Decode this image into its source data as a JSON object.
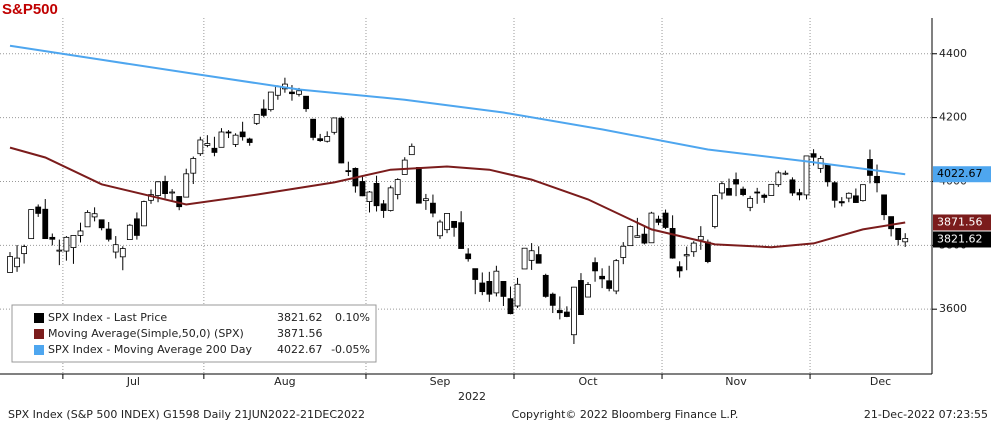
{
  "chart_data": {
    "type": "candlestick",
    "title": "S&P500",
    "xlabel": "2022",
    "xlim": [
      -1.42,
      130.8
    ],
    "ylim": [
      3397,
      4512
    ],
    "yticks": [
      3600,
      3800,
      4000,
      4200,
      4400
    ],
    "grid": true,
    "xticks": [
      7.5,
      27.5,
      50.5,
      71.5,
      92.5,
      113.5
    ],
    "month_labels": [
      {
        "value": 17.5,
        "label": "Jul"
      },
      {
        "value": 39,
        "label": "Aug"
      },
      {
        "value": 61,
        "label": "Sep"
      },
      {
        "value": 82,
        "label": "Oct"
      },
      {
        "value": 103,
        "label": "Nov"
      },
      {
        "value": 123.5,
        "label": "Dec"
      }
    ],
    "candle_name": "SPX Index - Last Price",
    "candle_change": "0.10%",
    "up_color": "#ffffff",
    "down_color": "#000000",
    "ohlc": [
      [
        3715,
        3779,
        3715,
        3765
      ],
      [
        3733,
        3801,
        3717,
        3760
      ],
      [
        3774,
        3802,
        3743,
        3796
      ],
      [
        3821,
        3913,
        3821,
        3912
      ],
      [
        3920,
        3928,
        3889,
        3900
      ],
      [
        3913,
        3945,
        3820,
        3821
      ],
      [
        3825,
        3837,
        3800,
        3819
      ],
      [
        3785,
        3818,
        3738,
        3785
      ],
      [
        3782,
        3829,
        3752,
        3825
      ],
      [
        3793,
        3832,
        3742,
        3831
      ],
      [
        3831,
        3871,
        3809,
        3845
      ],
      [
        3858,
        3910,
        3858,
        3903
      ],
      [
        3889,
        3919,
        3875,
        3899
      ],
      [
        3880,
        3880,
        3847,
        3855
      ],
      [
        3851,
        3873,
        3812,
        3819
      ],
      [
        3779,
        3829,
        3759,
        3802
      ],
      [
        3764,
        3797,
        3722,
        3790
      ],
      [
        3818,
        3867,
        3818,
        3863
      ],
      [
        3883,
        3903,
        3818,
        3831
      ],
      [
        3861,
        3940,
        3860,
        3937
      ],
      [
        3941,
        3975,
        3930,
        3959
      ],
      [
        3956,
        4001,
        3935,
        3999
      ],
      [
        4000,
        4018,
        3947,
        3962
      ],
      [
        3966,
        3976,
        3939,
        3967
      ],
      [
        3953,
        3954,
        3910,
        3921
      ],
      [
        3951,
        4040,
        3951,
        4024
      ],
      [
        4026,
        4078,
        3992,
        4072
      ],
      [
        4087,
        4140,
        4080,
        4130
      ],
      [
        4113,
        4145,
        4107,
        4119
      ],
      [
        4104,
        4140,
        4079,
        4091
      ],
      [
        4107,
        4167,
        4107,
        4155
      ],
      [
        4155,
        4161,
        4136,
        4152
      ],
      [
        4116,
        4151,
        4108,
        4145
      ],
      [
        4155,
        4187,
        4128,
        4140
      ],
      [
        4133,
        4137,
        4112,
        4122
      ],
      [
        4182,
        4211,
        4177,
        4210
      ],
      [
        4227,
        4257,
        4201,
        4207
      ],
      [
        4225,
        4280,
        4219,
        4280
      ],
      [
        4270,
        4301,
        4256,
        4297
      ],
      [
        4290,
        4325,
        4278,
        4305
      ],
      [
        4280,
        4302,
        4253,
        4275
      ],
      [
        4273,
        4293,
        4266,
        4284
      ],
      [
        4267,
        4267,
        4218,
        4228
      ],
      [
        4195,
        4195,
        4129,
        4138
      ],
      [
        4134,
        4149,
        4124,
        4128
      ],
      [
        4126,
        4157,
        4122,
        4141
      ],
      [
        4154,
        4200,
        4147,
        4199
      ],
      [
        4198,
        4204,
        4057,
        4058
      ],
      [
        4034,
        4062,
        4017,
        4031
      ],
      [
        4041,
        4044,
        3965,
        3986
      ],
      [
        4000,
        4016,
        3954,
        3955
      ],
      [
        3937,
        3970,
        3903,
        3967
      ],
      [
        3994,
        4018,
        3906,
        3924
      ],
      [
        3930,
        3942,
        3886,
        3909
      ],
      [
        3909,
        3987,
        3906,
        3980
      ],
      [
        3959,
        4010,
        3944,
        4006
      ],
      [
        4022,
        4076,
        4022,
        4067
      ],
      [
        4084,
        4119,
        4083,
        4110
      ],
      [
        4044,
        4044,
        3933,
        3932
      ],
      [
        3940,
        3961,
        3911,
        3946
      ],
      [
        3932,
        3959,
        3888,
        3901
      ],
      [
        3830,
        3880,
        3820,
        3873
      ],
      [
        3849,
        3901,
        3838,
        3900
      ],
      [
        3875,
        3876,
        3827,
        3856
      ],
      [
        3871,
        3907,
        3789,
        3790
      ],
      [
        3773,
        3791,
        3749,
        3758
      ],
      [
        3727,
        3727,
        3647,
        3693
      ],
      [
        3682,
        3715,
        3644,
        3655
      ],
      [
        3687,
        3717,
        3623,
        3647
      ],
      [
        3651,
        3736,
        3640,
        3719
      ],
      [
        3687,
        3687,
        3610,
        3640
      ],
      [
        3633,
        3671,
        3584,
        3586
      ],
      [
        3610,
        3698,
        3604,
        3678
      ],
      [
        3726,
        3791,
        3726,
        3791
      ],
      [
        3753,
        3807,
        3723,
        3783
      ],
      [
        3771,
        3797,
        3745,
        3744
      ],
      [
        3706,
        3711,
        3636,
        3640
      ],
      [
        3647,
        3652,
        3588,
        3612
      ],
      [
        3596,
        3640,
        3568,
        3589
      ],
      [
        3591,
        3609,
        3575,
        3577
      ],
      [
        3520,
        3670,
        3491,
        3669
      ],
      [
        3690,
        3713,
        3583,
        3583
      ],
      [
        3638,
        3685,
        3638,
        3677
      ],
      [
        3746,
        3762,
        3686,
        3720
      ],
      [
        3703,
        3728,
        3666,
        3695
      ],
      [
        3689,
        3736,
        3656,
        3665
      ],
      [
        3657,
        3757,
        3647,
        3752
      ],
      [
        3762,
        3810,
        3741,
        3797
      ],
      [
        3799,
        3862,
        3799,
        3859
      ],
      [
        3825,
        3886,
        3824,
        3830
      ],
      [
        3835,
        3859,
        3803,
        3807
      ],
      [
        3808,
        3905,
        3808,
        3901
      ],
      [
        3882,
        3893,
        3863,
        3872
      ],
      [
        3901,
        3912,
        3851,
        3856
      ],
      [
        3853,
        3894,
        3758,
        3760
      ],
      [
        3733,
        3750,
        3699,
        3720
      ],
      [
        3767,
        3796,
        3722,
        3771
      ],
      [
        3780,
        3813,
        3764,
        3807
      ],
      [
        3817,
        3860,
        3786,
        3828
      ],
      [
        3810,
        3818,
        3744,
        3749
      ],
      [
        3859,
        3959,
        3853,
        3956
      ],
      [
        3964,
        4001,
        3944,
        3993
      ],
      [
        3978,
        4009,
        3956,
        3957
      ],
      [
        4006,
        4028,
        3954,
        3992
      ],
      [
        3976,
        3984,
        3954,
        3959
      ],
      [
        3919,
        3955,
        3907,
        3947
      ],
      [
        3967,
        3980,
        3930,
        3965
      ],
      [
        3957,
        3962,
        3933,
        3950
      ],
      [
        3956,
        3991,
        3956,
        3991
      ],
      [
        3990,
        4034,
        3983,
        4027
      ],
      [
        4024,
        4034,
        4020,
        4026
      ],
      [
        4005,
        4013,
        3955,
        3964
      ],
      [
        3965,
        3977,
        3941,
        3958
      ],
      [
        3958,
        4080,
        3944,
        4080
      ],
      [
        4087,
        4101,
        4050,
        4076
      ],
      [
        4041,
        4080,
        4027,
        4072
      ],
      [
        4052,
        4053,
        3984,
        3999
      ],
      [
        3996,
        4001,
        3918,
        3941
      ],
      [
        3937,
        3951,
        3922,
        3933
      ],
      [
        3948,
        3966,
        3935,
        3963
      ],
      [
        3955,
        3978,
        3933,
        3934
      ],
      [
        3940,
        3990,
        3937,
        3990
      ],
      [
        4069,
        4100,
        3994,
        4019
      ],
      [
        4016,
        4053,
        3966,
        3996
      ],
      [
        3958,
        3959,
        3879,
        3896
      ],
      [
        3890,
        3890,
        3828,
        3852
      ],
      [
        3853,
        3854,
        3800,
        3818
      ],
      [
        3811,
        3838,
        3795,
        3821.62
      ]
    ],
    "series": [
      {
        "name": "Moving Average(Simple,50,0) (SPX)",
        "color": "#7b1c1c",
        "x": [
          0,
          5,
          13,
          25,
          35,
          46,
          54,
          62,
          68,
          74,
          82,
          91,
          100,
          108,
          114,
          121,
          127
        ],
        "values": [
          4106,
          4075,
          3991,
          3928,
          3959,
          3997,
          4037,
          4047,
          4037,
          4006,
          3944,
          3850,
          3803,
          3794,
          3806,
          3850,
          3871.56
        ]
      },
      {
        "name": "SPX Index - Moving Average 200 Day",
        "color": "#4ea6ef",
        "change": "-0.05%",
        "x": [
          0,
          13,
          27,
          41,
          56,
          70,
          84,
          99,
          113,
          127
        ],
        "values": [
          4425,
          4381,
          4334,
          4288,
          4256,
          4216,
          4163,
          4100,
          4063,
          4022.67
        ]
      }
    ],
    "footer_left": "SPX Index (S&P 500 INDEX) G1598  Daily 21JUN2022-21DEC2022",
    "footer_center": "Copyright© 2022 Bloomberg Finance L.P.",
    "footer_right": "21-Dec-2022 07:23:55"
  }
}
